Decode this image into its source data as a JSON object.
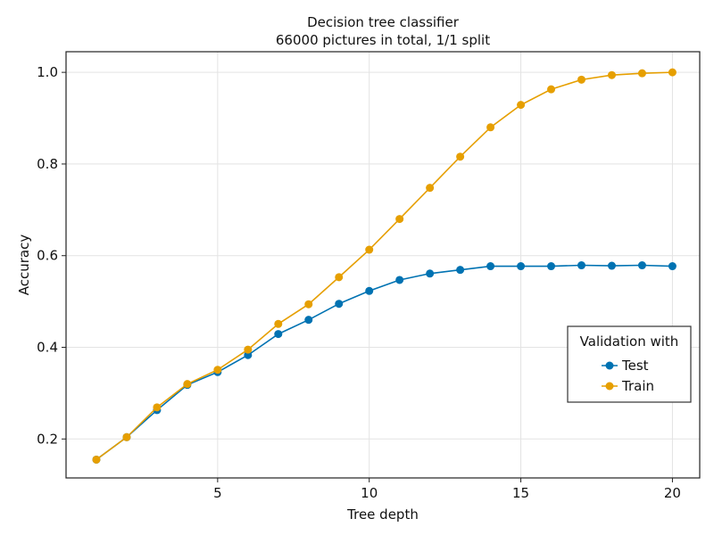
{
  "chart_data": {
    "type": "line",
    "title": "Decision tree classifier",
    "subtitle": "66000 pictures in total, 1/1 split",
    "xlabel": "Tree depth",
    "ylabel": "Accuracy",
    "xlim": [
      0.0,
      20.9
    ],
    "ylim": [
      0.115,
      1.045
    ],
    "xticks": [
      5,
      10,
      15,
      20
    ],
    "xtick_labels": [
      "5",
      "10",
      "15",
      "20"
    ],
    "yticks": [
      0.2,
      0.4,
      0.6,
      0.8,
      1.0
    ],
    "ytick_labels": [
      "0.2",
      "0.4",
      "0.6",
      "0.8",
      "1.0"
    ],
    "grid": true,
    "legend": {
      "title": "Validation with",
      "placement": "right"
    },
    "x": [
      1,
      2,
      3,
      4,
      5,
      6,
      7,
      8,
      9,
      10,
      11,
      12,
      13,
      14,
      15,
      16,
      17,
      18,
      19,
      20
    ],
    "series": [
      {
        "name": "Test",
        "color": "#0072b2",
        "values": [
          0.155,
          0.204,
          0.263,
          0.318,
          0.346,
          0.383,
          0.429,
          0.46,
          0.495,
          0.523,
          0.547,
          0.561,
          0.569,
          0.577,
          0.577,
          0.577,
          0.579,
          0.578,
          0.579,
          0.577
        ]
      },
      {
        "name": "Train",
        "color": "#e69f00",
        "values": [
          0.155,
          0.204,
          0.269,
          0.32,
          0.351,
          0.395,
          0.451,
          0.494,
          0.553,
          0.613,
          0.68,
          0.748,
          0.816,
          0.88,
          0.929,
          0.963,
          0.984,
          0.994,
          0.998,
          1.0
        ]
      }
    ]
  }
}
